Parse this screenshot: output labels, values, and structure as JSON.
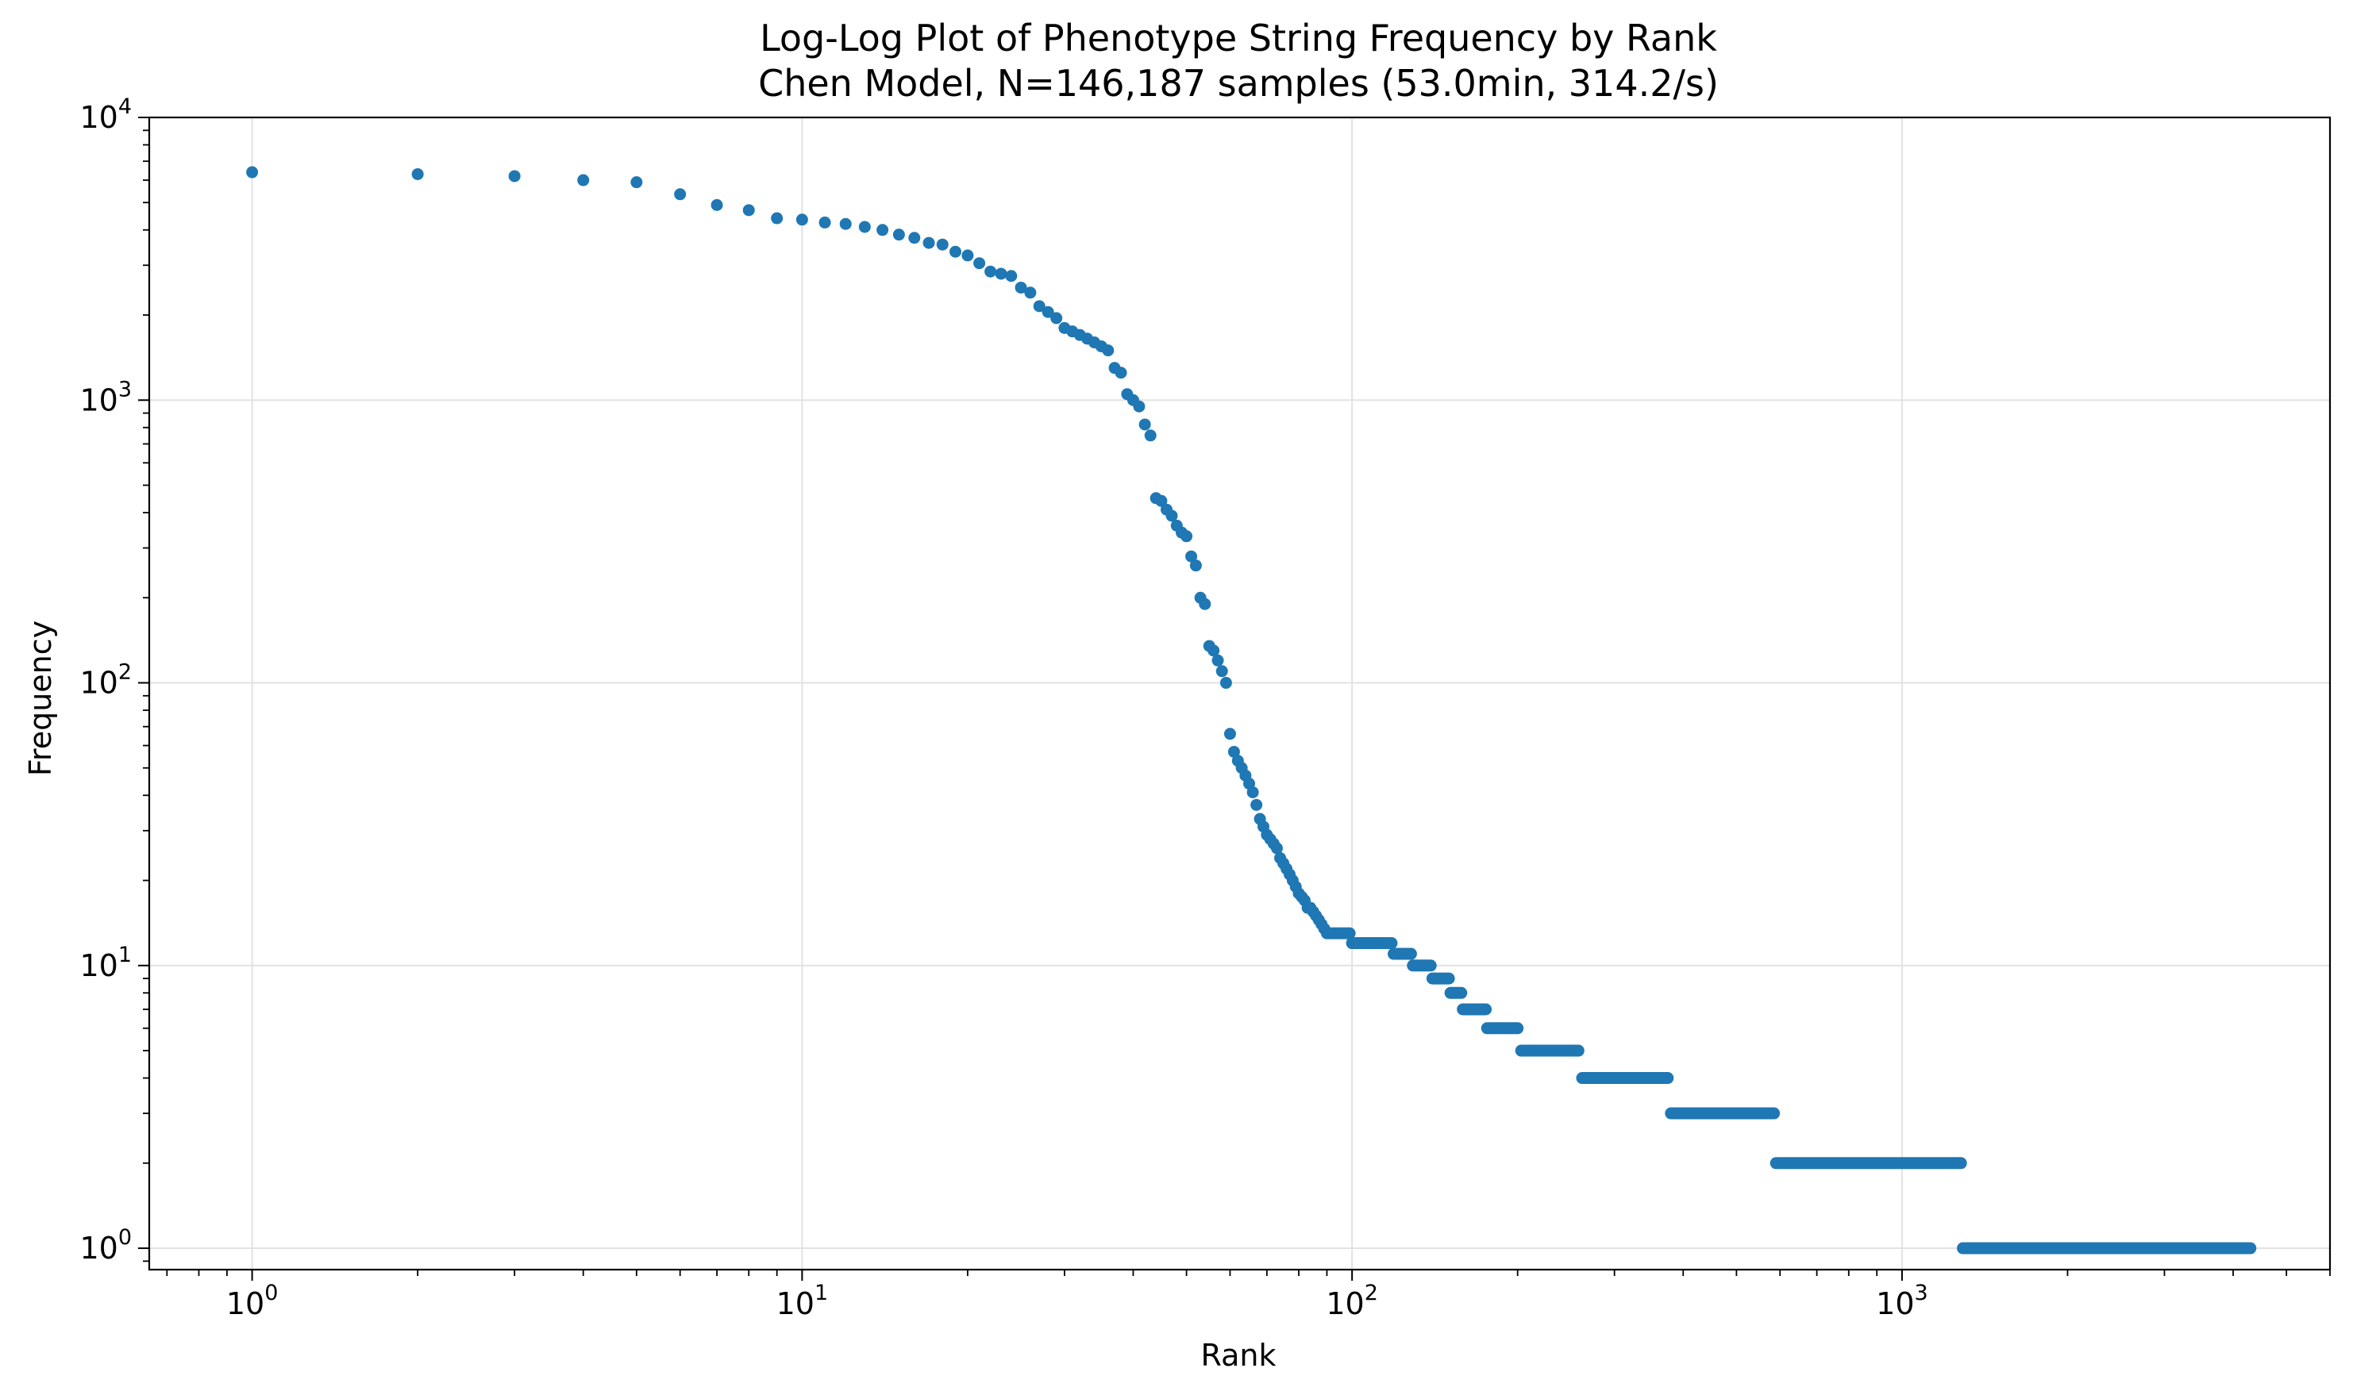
{
  "chart_data": {
    "type": "scatter",
    "title": "Log-Log Plot of Phenotype String Frequency by Rank",
    "subtitle": "Chen Model, N=146,187 samples (53.0min, 314.2/s)",
    "xlabel": "Rank",
    "ylabel": "Frequency",
    "xscale": "log",
    "yscale": "log",
    "xlim": [
      0.65,
      6000
    ],
    "ylim": [
      0.84,
      10000
    ],
    "grid": true,
    "color": "#1f77b4",
    "xticks": [
      {
        "base": "10",
        "exp": "0",
        "value": 1
      },
      {
        "base": "10",
        "exp": "1",
        "value": 10
      },
      {
        "base": "10",
        "exp": "2",
        "value": 100
      },
      {
        "base": "10",
        "exp": "3",
        "value": 1000
      }
    ],
    "yticks": [
      {
        "base": "10",
        "exp": "0",
        "value": 1
      },
      {
        "base": "10",
        "exp": "1",
        "value": 10
      },
      {
        "base": "10",
        "exp": "2",
        "value": 100
      },
      {
        "base": "10",
        "exp": "3",
        "value": 1000
      },
      {
        "base": "10",
        "exp": "4",
        "value": 10000
      }
    ],
    "points": [
      [
        1,
        6400
      ],
      [
        2,
        6300
      ],
      [
        3,
        6200
      ],
      [
        4,
        6000
      ],
      [
        5,
        5900
      ],
      [
        6,
        5350
      ],
      [
        7,
        4900
      ],
      [
        8,
        4700
      ],
      [
        9,
        4400
      ],
      [
        10,
        4350
      ],
      [
        11,
        4250
      ],
      [
        12,
        4200
      ],
      [
        13,
        4100
      ],
      [
        14,
        4000
      ],
      [
        15,
        3850
      ],
      [
        16,
        3750
      ],
      [
        17,
        3600
      ],
      [
        18,
        3550
      ],
      [
        19,
        3350
      ],
      [
        20,
        3250
      ],
      [
        21,
        3050
      ],
      [
        22,
        2850
      ],
      [
        23,
        2800
      ],
      [
        24,
        2750
      ],
      [
        25,
        2500
      ],
      [
        26,
        2400
      ],
      [
        27,
        2150
      ],
      [
        28,
        2050
      ],
      [
        29,
        1950
      ],
      [
        30,
        1800
      ],
      [
        31,
        1750
      ],
      [
        32,
        1700
      ],
      [
        33,
        1650
      ],
      [
        34,
        1600
      ],
      [
        35,
        1550
      ],
      [
        36,
        1500
      ],
      [
        37,
        1300
      ],
      [
        38,
        1250
      ],
      [
        39,
        1050
      ],
      [
        40,
        1000
      ],
      [
        41,
        950
      ],
      [
        42,
        820
      ],
      [
        43,
        750
      ],
      [
        44,
        450
      ],
      [
        45,
        440
      ],
      [
        46,
        410
      ],
      [
        47,
        390
      ],
      [
        48,
        360
      ],
      [
        49,
        340
      ],
      [
        50,
        330
      ],
      [
        51,
        280
      ],
      [
        52,
        260
      ],
      [
        53,
        200
      ],
      [
        54,
        190
      ],
      [
        55,
        135
      ],
      [
        56,
        130
      ],
      [
        57,
        120
      ],
      [
        58,
        110
      ],
      [
        59,
        100
      ],
      [
        60,
        66
      ],
      [
        61,
        57
      ],
      [
        62,
        53
      ],
      [
        63,
        50
      ],
      [
        64,
        47
      ],
      [
        65,
        44
      ],
      [
        66,
        41
      ],
      [
        67,
        37
      ],
      [
        68,
        33
      ],
      [
        69,
        31
      ],
      [
        70,
        29
      ],
      [
        71,
        28
      ],
      [
        72,
        27
      ],
      [
        73,
        26
      ],
      [
        74,
        24
      ],
      [
        75,
        23
      ],
      [
        76,
        22
      ],
      [
        77,
        21
      ],
      [
        78,
        20
      ],
      [
        79,
        19
      ],
      [
        80,
        18
      ],
      [
        81,
        17.5
      ],
      [
        82,
        17
      ],
      [
        83,
        16
      ],
      [
        84,
        16
      ],
      [
        85,
        15.5
      ],
      [
        86,
        15
      ],
      [
        87,
        14.5
      ],
      [
        88,
        14
      ],
      [
        89,
        13.5
      ],
      [
        90,
        13
      ],
      [
        91,
        13
      ],
      [
        92,
        13
      ],
      [
        93,
        13
      ],
      [
        94,
        13
      ],
      [
        95,
        13
      ],
      [
        96,
        13
      ],
      [
        97,
        13
      ],
      [
        98,
        13
      ],
      [
        99,
        13
      ],
      [
        100,
        12
      ]
    ],
    "runs": [
      {
        "y": 12,
        "x_start": 100,
        "x_end": 118
      },
      {
        "y": 11,
        "x_start": 119,
        "x_end": 128
      },
      {
        "y": 10,
        "x_start": 129,
        "x_end": 139
      },
      {
        "y": 9,
        "x_start": 140,
        "x_end": 150
      },
      {
        "y": 8,
        "x_start": 151,
        "x_end": 158
      },
      {
        "y": 7,
        "x_start": 159,
        "x_end": 175
      },
      {
        "y": 6,
        "x_start": 176,
        "x_end": 200
      },
      {
        "y": 5,
        "x_start": 203,
        "x_end": 258
      },
      {
        "y": 4,
        "x_start": 262,
        "x_end": 375
      },
      {
        "y": 3,
        "x_start": 380,
        "x_end": 585
      },
      {
        "y": 2,
        "x_start": 590,
        "x_end": 1280
      },
      {
        "y": 1,
        "x_start": 1290,
        "x_end": 4300
      }
    ]
  }
}
